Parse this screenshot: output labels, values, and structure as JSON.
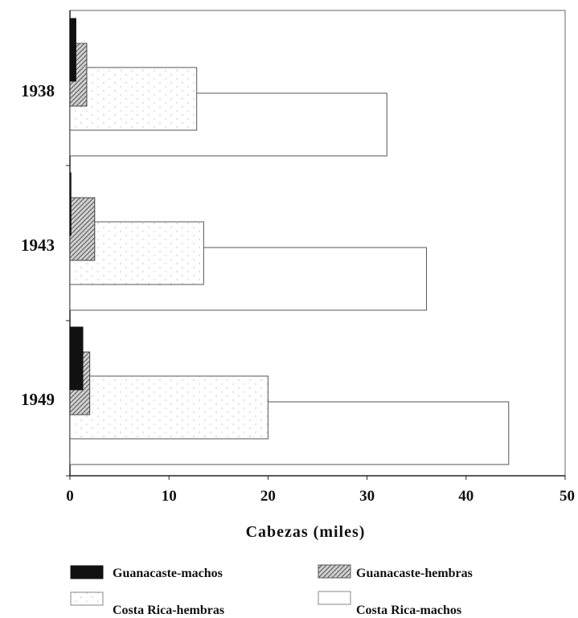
{
  "chart_data": {
    "type": "bar",
    "orientation": "horizontal",
    "title": "",
    "xlabel": "Cabezas (miles)",
    "ylabel": "",
    "xlim": [
      0,
      50
    ],
    "xticks": [
      "0",
      "10",
      "20",
      "30",
      "40",
      "50"
    ],
    "categories": [
      "1938",
      "1943",
      "1949"
    ],
    "series": [
      {
        "name": "Guanacaste-machos",
        "values": [
          0.6,
          0.1,
          1.3
        ],
        "fill": "solid",
        "color": "#111111"
      },
      {
        "name": "Guanacaste-hembras",
        "values": [
          1.7,
          2.5,
          2.0
        ],
        "fill": "hatched",
        "color": "#777777"
      },
      {
        "name": "Costa Rica-hembras",
        "values": [
          12.8,
          13.5,
          20.0
        ],
        "fill": "dotted",
        "color": "#ffffff"
      },
      {
        "name": "Costa Rica-machos",
        "values": [
          32.0,
          36.0,
          44.3
        ],
        "fill": "blank",
        "color": "#ffffff"
      }
    ],
    "legend_position": "bottom",
    "grid": false
  }
}
